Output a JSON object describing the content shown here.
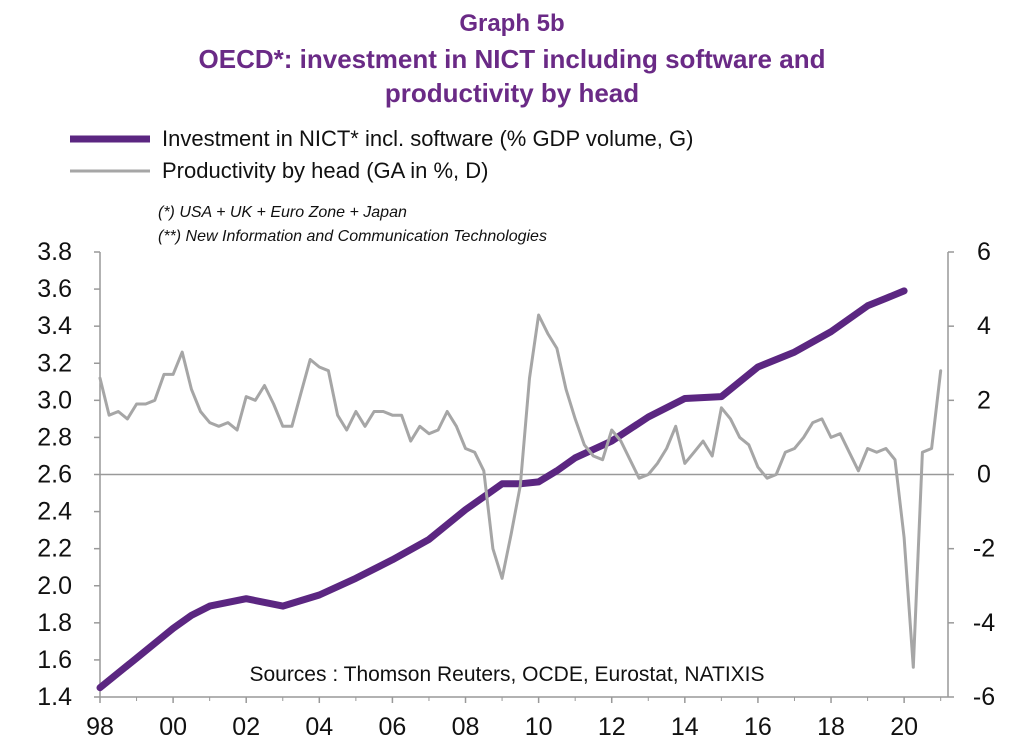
{
  "title": {
    "line1": "Graph 5b",
    "line2": "OECD*: investment in NICT including software and",
    "line3": "productivity by head"
  },
  "legend": {
    "series1": "Investment in NICT* incl. software (% GDP volume, G)",
    "series2": "Productivity by head (GA in %, D)"
  },
  "notes": {
    "note1": "(*) USA + UK + Euro Zone + Japan",
    "note2": "(**) New Information and Communication Technologies"
  },
  "source": "Sources : Thomson Reuters, OCDE, Eurostat, NATIXIS",
  "colors": {
    "series1": "#5b2681",
    "series2": "#a6a6a6",
    "title": "#6a2a86"
  },
  "chart_data": {
    "type": "line",
    "x_ticks": [
      "98",
      "00",
      "02",
      "04",
      "06",
      "08",
      "10",
      "12",
      "14",
      "16",
      "18",
      "20"
    ],
    "left_axis": {
      "ticks": [
        "1.4",
        "1.6",
        "1.8",
        "2.0",
        "2.2",
        "2.4",
        "2.6",
        "2.8",
        "3.0",
        "3.2",
        "3.4",
        "3.6",
        "3.8"
      ],
      "ylim": [
        1.4,
        3.8
      ]
    },
    "right_axis": {
      "ticks": [
        "-6",
        "-4",
        "-2",
        "0",
        "2",
        "4",
        "6"
      ],
      "ylim": [
        -6,
        6
      ]
    },
    "reference_line_right": 0,
    "series": [
      {
        "name": "Investment in NICT* incl. software (% GDP volume, G)",
        "axis": "left",
        "x": [
          1998.0,
          1999.0,
          2000.0,
          2000.5,
          2001.0,
          2002.0,
          2003.0,
          2004.0,
          2005.0,
          2006.0,
          2007.0,
          2008.0,
          2008.5,
          2009.0,
          2009.5,
          2010.0,
          2010.5,
          2011.0,
          2012.0,
          2013.0,
          2014.0,
          2015.0,
          2016.0,
          2017.0,
          2018.0,
          2019.0,
          2019.5,
          2020.0
        ],
        "values": [
          1.45,
          1.61,
          1.77,
          1.84,
          1.89,
          1.93,
          1.89,
          1.95,
          2.04,
          2.14,
          2.25,
          2.41,
          2.48,
          2.55,
          2.55,
          2.56,
          2.62,
          2.69,
          2.78,
          2.91,
          3.01,
          3.02,
          3.18,
          3.26,
          3.37,
          3.51,
          3.55,
          3.59
        ]
      },
      {
        "name": "Productivity by head (GA in %, D)",
        "axis": "right",
        "x": [
          1998.0,
          1998.25,
          1998.5,
          1998.75,
          1999.0,
          1999.25,
          1999.5,
          1999.75,
          2000.0,
          2000.25,
          2000.5,
          2000.75,
          2001.0,
          2001.25,
          2001.5,
          2001.75,
          2002.0,
          2002.25,
          2002.5,
          2002.75,
          2003.0,
          2003.25,
          2003.5,
          2003.75,
          2004.0,
          2004.25,
          2004.5,
          2004.75,
          2005.0,
          2005.25,
          2005.5,
          2005.75,
          2006.0,
          2006.25,
          2006.5,
          2006.75,
          2007.0,
          2007.25,
          2007.5,
          2007.75,
          2008.0,
          2008.25,
          2008.5,
          2008.75,
          2009.0,
          2009.25,
          2009.5,
          2009.75,
          2010.0,
          2010.25,
          2010.5,
          2010.75,
          2011.0,
          2011.25,
          2011.5,
          2011.75,
          2012.0,
          2012.25,
          2012.5,
          2012.75,
          2013.0,
          2013.25,
          2013.5,
          2013.75,
          2014.0,
          2014.25,
          2014.5,
          2014.75,
          2015.0,
          2015.25,
          2015.5,
          2015.75,
          2016.0,
          2016.25,
          2016.5,
          2016.75,
          2017.0,
          2017.25,
          2017.5,
          2017.75,
          2018.0,
          2018.25,
          2018.5,
          2018.75,
          2019.0,
          2019.25,
          2019.5,
          2019.75,
          2020.0,
          2020.25,
          2020.5,
          2020.75,
          2021.0
        ],
        "values": [
          2.6,
          1.6,
          1.7,
          1.5,
          1.9,
          1.9,
          2.0,
          2.7,
          2.7,
          3.3,
          2.3,
          1.7,
          1.4,
          1.3,
          1.4,
          1.2,
          2.1,
          2.0,
          2.4,
          1.9,
          1.3,
          1.3,
          2.2,
          3.1,
          2.9,
          2.8,
          1.6,
          1.2,
          1.7,
          1.3,
          1.7,
          1.7,
          1.6,
          1.6,
          0.9,
          1.3,
          1.1,
          1.2,
          1.7,
          1.3,
          0.7,
          0.6,
          0.1,
          -2.0,
          -2.8,
          -1.6,
          -0.3,
          2.6,
          4.3,
          3.8,
          3.4,
          2.3,
          1.5,
          0.8,
          0.5,
          0.4,
          1.2,
          0.9,
          0.4,
          -0.1,
          0.0,
          0.3,
          0.7,
          1.3,
          0.3,
          0.6,
          0.9,
          0.5,
          1.8,
          1.5,
          1.0,
          0.8,
          0.2,
          -0.1,
          0.0,
          0.6,
          0.7,
          1.0,
          1.4,
          1.5,
          1.0,
          1.1,
          0.6,
          0.1,
          0.7,
          0.6,
          0.7,
          0.4,
          -1.7,
          -5.2,
          0.6,
          0.7,
          2.8
        ]
      }
    ]
  }
}
